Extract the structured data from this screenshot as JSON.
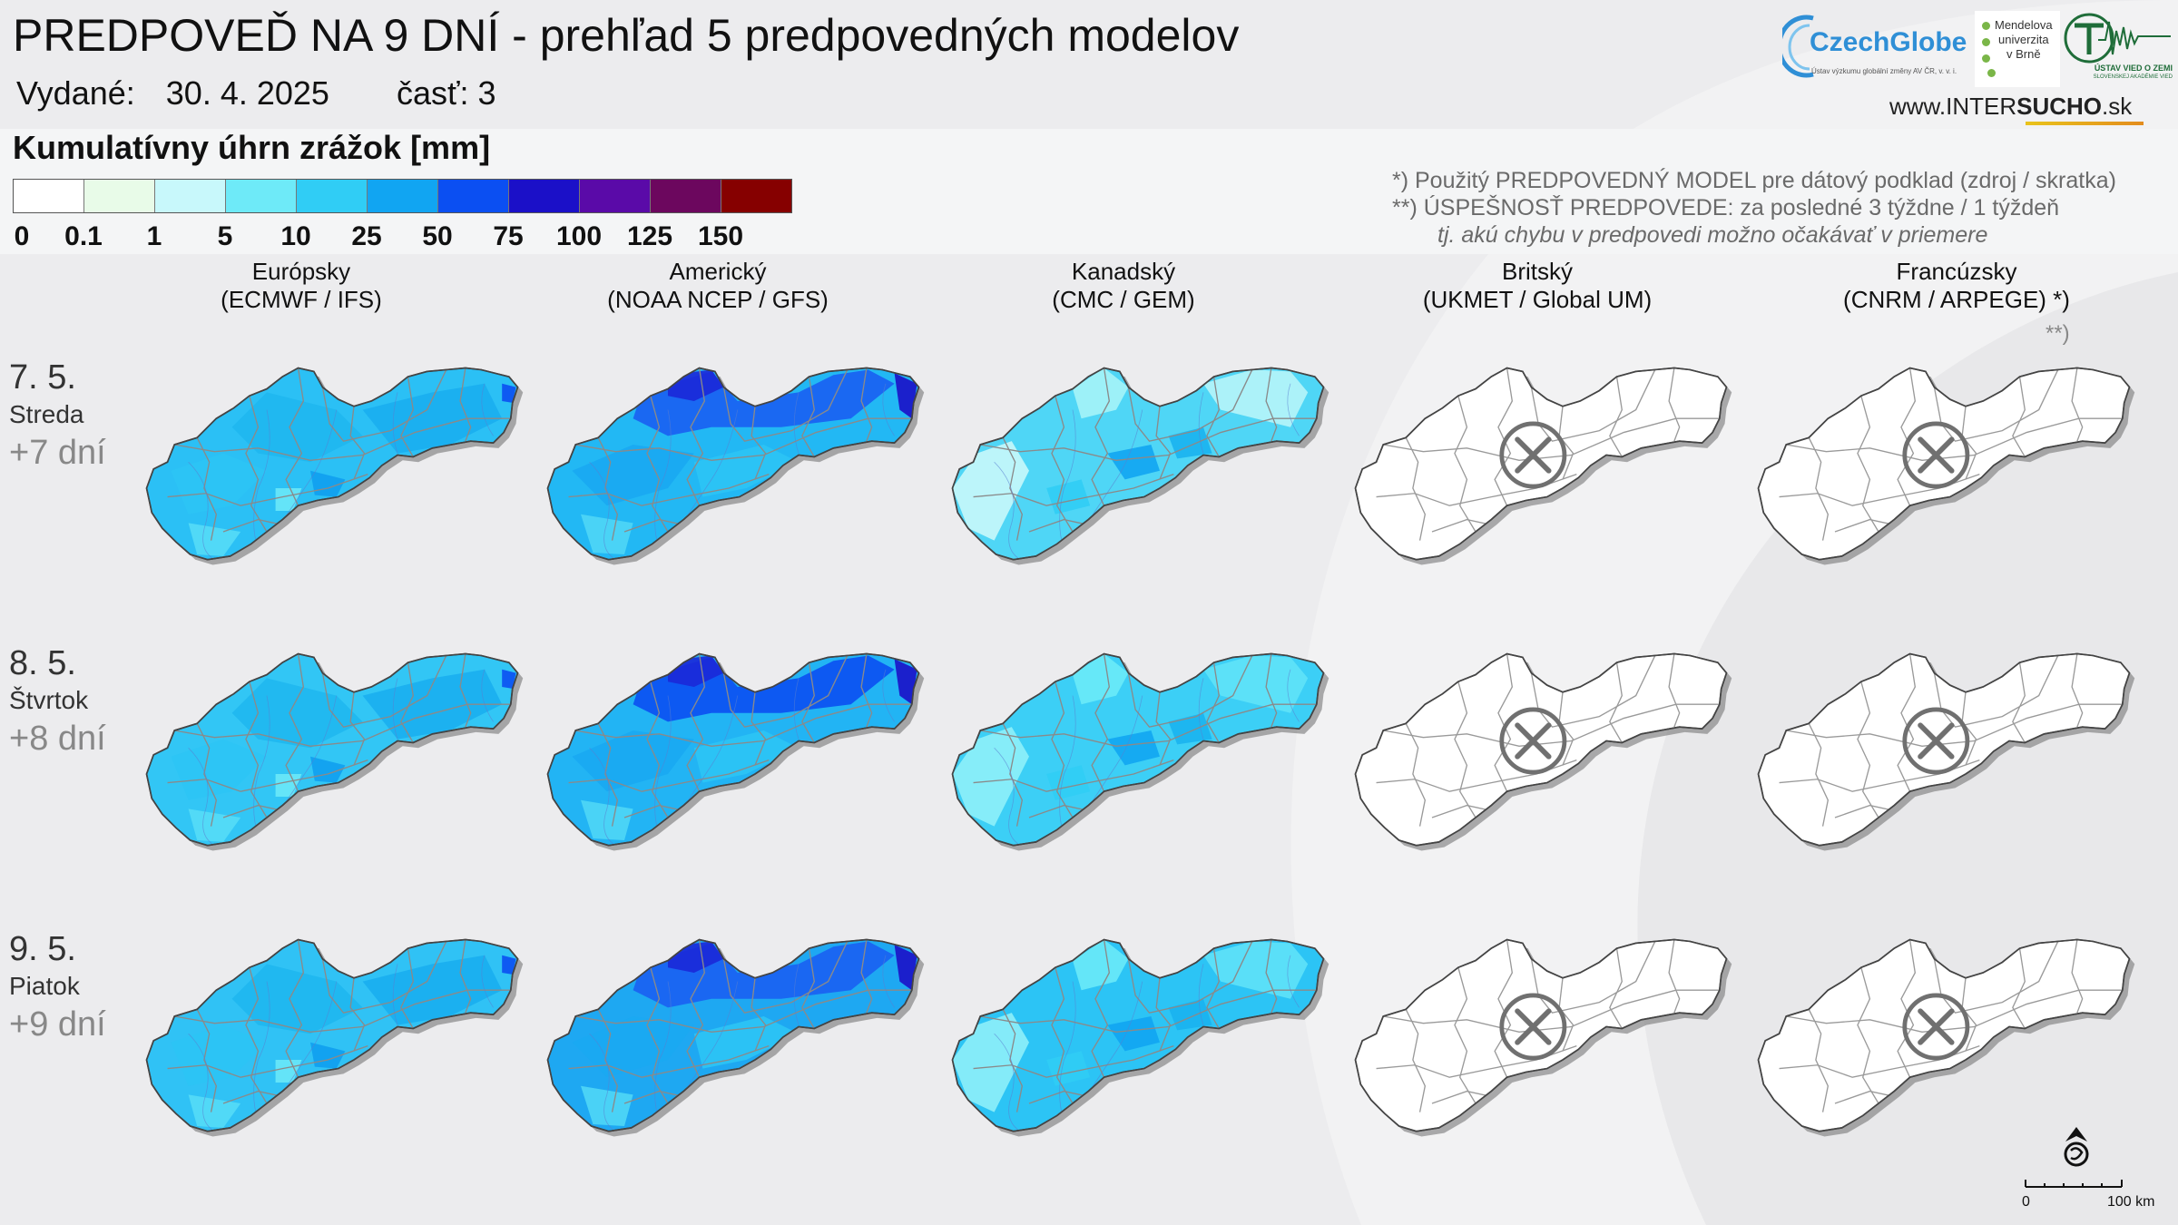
{
  "header": {
    "title": "PREDPOVEĎ NA 9 DNÍ - prehľad 5 predpovedných modelov",
    "issued_label": "Vydané:",
    "issued_date": "30. 4. 2025",
    "part_label": "časť: 3"
  },
  "legend": {
    "title": "Kumulatívny úhrn zrážok [mm]",
    "colors": [
      "#ffffff",
      "#e8fbe8",
      "#c8f8fb",
      "#6eeaf8",
      "#30cdf5",
      "#11a5f2",
      "#0b4ff2",
      "#1b10c8",
      "#5a0aa8",
      "#6c075e",
      "#860000"
    ],
    "ticks": [
      "0",
      "0.1",
      "1",
      "5",
      "10",
      "25",
      "50",
      "75",
      "100",
      "125",
      "150"
    ]
  },
  "notes": {
    "line1": "*)   Použitý PREDPOVEDNÝ MODEL pre dátový podklad (zdroj / skratka)",
    "line2": "**) ÚSPEŠNOSŤ PREDPOVEDE: za posledné 3 týždne / 1 týždeň",
    "line3": "tj. akú chybu v predpovedi možno očakávať v priemere",
    "success_mark": "**)"
  },
  "logos": {
    "czechglobe": "CzechGlobe",
    "czechglobe_sub": "Ústav výzkumu globální změny AV ČR, v. v. i.",
    "mendel_1": "Mendelova",
    "mendel_2": "univerzita",
    "mendel_3": "v Brně",
    "uvz": "ÚSTAV VIED O ZEMI",
    "uvz_sub": "SLOVENSKEJ AKADÉMIE VIED",
    "site_pre": "www.INTER",
    "site_bold": "SUCHO",
    "site_post": ".sk"
  },
  "models": [
    {
      "name": "Európsky",
      "code": "(ECMWF / IFS)",
      "available": true
    },
    {
      "name": "Americký",
      "code": "(NOAA NCEP / GFS)",
      "available": true
    },
    {
      "name": "Kanadský",
      "code": "(CMC / GEM)",
      "available": true
    },
    {
      "name": "Britský",
      "code": "(UKMET / Global UM)",
      "available": false
    },
    {
      "name": "Francúzsky",
      "code": "(CNRM / ARPEGE) *)",
      "available": false
    }
  ],
  "rows": [
    {
      "date": "7. 5.",
      "weekday": "Streda",
      "lead": "+7 dní"
    },
    {
      "date": "8. 5.",
      "weekday": "Štvrtok",
      "lead": "+8 dní"
    },
    {
      "date": "9. 5.",
      "weekday": "Piatok",
      "lead": "+9 dní"
    }
  ],
  "scale": {
    "start": "0",
    "end": "100 km"
  }
}
